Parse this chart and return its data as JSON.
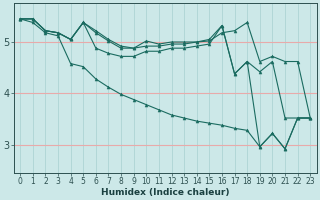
{
  "xlabel": "Humidex (Indice chaleur)",
  "background_color": "#cce8e8",
  "line_color": "#1a6b60",
  "xlim": [
    -0.5,
    23.5
  ],
  "ylim": [
    2.45,
    5.75
  ],
  "yticks": [
    3,
    4,
    5
  ],
  "xticks": [
    0,
    1,
    2,
    3,
    4,
    5,
    6,
    7,
    8,
    9,
    10,
    11,
    12,
    13,
    14,
    15,
    16,
    17,
    18,
    19,
    20,
    21,
    22,
    23
  ],
  "series": [
    [
      5.45,
      5.45,
      5.22,
      5.18,
      5.05,
      5.38,
      5.18,
      5.02,
      4.88,
      4.88,
      4.92,
      4.92,
      4.96,
      4.96,
      5.0,
      5.02,
      5.18,
      5.22,
      5.38,
      4.62,
      4.72,
      4.62,
      4.62,
      3.52
    ],
    [
      5.45,
      5.45,
      5.22,
      5.18,
      5.05,
      5.38,
      5.22,
      5.05,
      4.92,
      4.88,
      5.02,
      4.96,
      5.0,
      5.0,
      5.0,
      5.05,
      5.32,
      4.38,
      4.62,
      4.42,
      4.62,
      3.52,
      3.52,
      3.52
    ],
    [
      5.45,
      5.45,
      5.22,
      5.18,
      5.05,
      5.38,
      4.88,
      4.78,
      4.72,
      4.72,
      4.82,
      4.82,
      4.88,
      4.88,
      4.92,
      4.96,
      5.32,
      4.38,
      4.62,
      2.96,
      3.22,
      2.92,
      3.52,
      3.52
    ],
    [
      5.45,
      5.38,
      5.18,
      5.12,
      4.58,
      4.52,
      4.28,
      4.12,
      3.98,
      3.88,
      3.78,
      3.68,
      3.58,
      3.52,
      3.46,
      3.42,
      3.38,
      3.32,
      3.28,
      2.96,
      3.22,
      2.92,
      3.52,
      3.52
    ]
  ],
  "vgrid_color": "#aed4d4",
  "hgrid_color": "#e8aaaa",
  "tick_fontsize": 5.5,
  "xlabel_fontsize": 6.5,
  "ytick_fontsize": 7
}
